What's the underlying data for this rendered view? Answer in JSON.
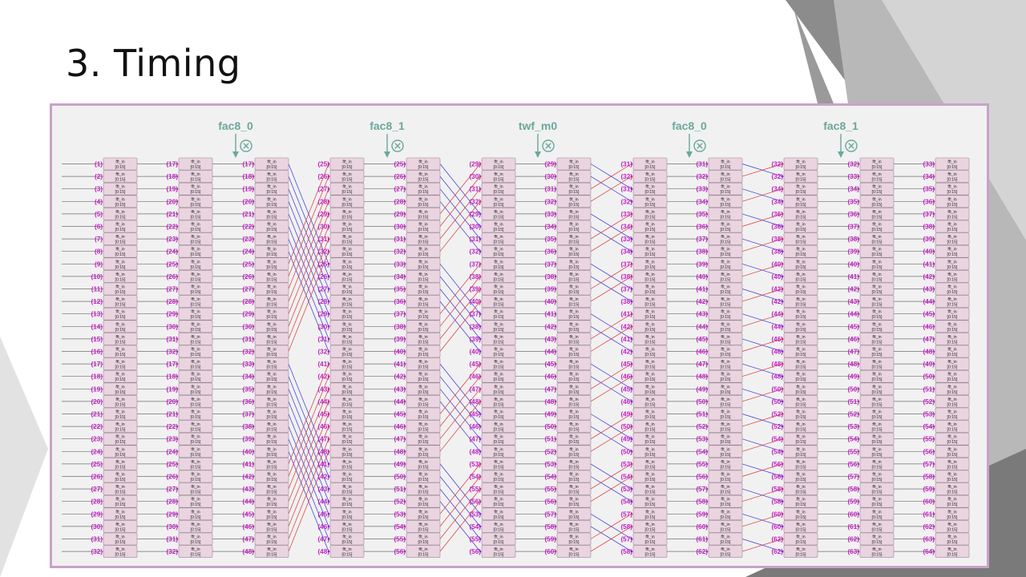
{
  "slide": {
    "title": "3. Timing"
  },
  "colors": {
    "accent": "#6aa89a",
    "label": "#c020c0",
    "box_fill": "#ead4e0",
    "box_stroke": "#9a8a98",
    "wire": "#707070",
    "cross_blue": "#3333dd",
    "cross_red": "#dd3333",
    "frame": "#c8a2c8"
  },
  "diagram": {
    "box_name": "fft_in",
    "box_range": "[0:15]",
    "multiplier_icon": "circled-times-icon",
    "operators": [
      "fac8_0",
      "fac8_1",
      "twf_m0",
      "fac8_0",
      "fac8_1"
    ],
    "columns": [
      {
        "labels": [
          "(1)",
          "(2)",
          "(3)",
          "(4)",
          "(5)",
          "(6)",
          "(7)",
          "(8)",
          "(9)",
          "(10)",
          "(11)",
          "(12)",
          "(13)",
          "(14)",
          "(15)",
          "(16)",
          "(17)",
          "(18)",
          "(19)",
          "(20)",
          "(21)",
          "(22)",
          "(23)",
          "(24)",
          "(25)",
          "(26)",
          "(27)",
          "(28)",
          "(29)",
          "(30)",
          "(31)",
          "(32)"
        ]
      },
      {
        "labels": [
          "(17)",
          "(18)",
          "(19)",
          "(20)",
          "(21)",
          "(22)",
          "(23)",
          "(24)",
          "(25)",
          "(26)",
          "(27)",
          "(28)",
          "(29)",
          "(30)",
          "(31)",
          "(32)",
          "(17)",
          "(18)",
          "(19)",
          "(20)",
          "(21)",
          "(22)",
          "(23)",
          "(24)",
          "(25)",
          "(26)",
          "(27)",
          "(28)",
          "(29)",
          "(30)",
          "(31)",
          "(32)"
        ]
      },
      {
        "labels": [
          "(17)",
          "(18)",
          "(19)",
          "(20)",
          "(21)",
          "(22)",
          "(23)",
          "(24)",
          "(25)",
          "(26)",
          "(27)",
          "(28)",
          "(29)",
          "(30)",
          "(31)",
          "(32)",
          "(33)",
          "(34)",
          "(35)",
          "(36)",
          "(37)",
          "(38)",
          "(39)",
          "(40)",
          "(41)",
          "(42)",
          "(43)",
          "(44)",
          "(45)",
          "(46)",
          "(47)",
          "(48)"
        ]
      },
      {
        "labels": [
          "(25)",
          "(26)",
          "(27)",
          "(28)",
          "(29)",
          "(30)",
          "(31)",
          "(32)",
          "(25)",
          "(26)",
          "(27)",
          "(28)",
          "(29)",
          "(30)",
          "(31)",
          "(32)",
          "(41)",
          "(42)",
          "(43)",
          "(44)",
          "(45)",
          "(46)",
          "(47)",
          "(48)",
          "(41)",
          "(42)",
          "(43)",
          "(44)",
          "(45)",
          "(46)",
          "(47)",
          "(48)"
        ]
      },
      {
        "labels": [
          "(25)",
          "(26)",
          "(27)",
          "(28)",
          "(29)",
          "(30)",
          "(31)",
          "(32)",
          "(33)",
          "(34)",
          "(35)",
          "(36)",
          "(37)",
          "(38)",
          "(39)",
          "(40)",
          "(41)",
          "(42)",
          "(43)",
          "(44)",
          "(45)",
          "(46)",
          "(47)",
          "(48)",
          "(49)",
          "(50)",
          "(51)",
          "(52)",
          "(53)",
          "(54)",
          "(55)",
          "(56)"
        ]
      },
      {
        "labels": [
          "(29)",
          "(30)",
          "(31)",
          "(32)",
          "(29)",
          "(30)",
          "(31)",
          "(32)",
          "(37)",
          "(38)",
          "(39)",
          "(40)",
          "(37)",
          "(38)",
          "(39)",
          "(40)",
          "(45)",
          "(46)",
          "(47)",
          "(48)",
          "(45)",
          "(46)",
          "(47)",
          "(48)",
          "(53)",
          "(54)",
          "(55)",
          "(56)",
          "(53)",
          "(54)",
          "(55)",
          "(56)"
        ]
      },
      {
        "labels": [
          "(29)",
          "(30)",
          "(31)",
          "(32)",
          "(33)",
          "(34)",
          "(35)",
          "(36)",
          "(37)",
          "(38)",
          "(39)",
          "(40)",
          "(41)",
          "(42)",
          "(43)",
          "(44)",
          "(45)",
          "(46)",
          "(47)",
          "(48)",
          "(49)",
          "(50)",
          "(51)",
          "(52)",
          "(53)",
          "(54)",
          "(55)",
          "(56)",
          "(57)",
          "(58)",
          "(59)",
          "(60)"
        ]
      },
      {
        "labels": [
          "(31)",
          "(32)",
          "(31)",
          "(32)",
          "(33)",
          "(34)",
          "(33)",
          "(34)",
          "(37)",
          "(38)",
          "(37)",
          "(38)",
          "(41)",
          "(42)",
          "(41)",
          "(42)",
          "(45)",
          "(46)",
          "(45)",
          "(46)",
          "(49)",
          "(50)",
          "(49)",
          "(50)",
          "(53)",
          "(54)",
          "(53)",
          "(54)",
          "(57)",
          "(58)",
          "(57)",
          "(58)"
        ]
      },
      {
        "labels": [
          "(31)",
          "(32)",
          "(33)",
          "(34)",
          "(35)",
          "(36)",
          "(37)",
          "(38)",
          "(39)",
          "(40)",
          "(41)",
          "(42)",
          "(43)",
          "(44)",
          "(45)",
          "(46)",
          "(47)",
          "(48)",
          "(49)",
          "(50)",
          "(51)",
          "(52)",
          "(53)",
          "(54)",
          "(55)",
          "(56)",
          "(57)",
          "(58)",
          "(59)",
          "(60)",
          "(61)",
          "(62)"
        ]
      },
      {
        "labels": [
          "(32)",
          "(32)",
          "(34)",
          "(34)",
          "(36)",
          "(36)",
          "(38)",
          "(38)",
          "(40)",
          "(40)",
          "(42)",
          "(42)",
          "(44)",
          "(44)",
          "(46)",
          "(46)",
          "(48)",
          "(48)",
          "(50)",
          "(50)",
          "(52)",
          "(52)",
          "(54)",
          "(54)",
          "(56)",
          "(56)",
          "(58)",
          "(58)",
          "(60)",
          "(60)",
          "(62)",
          "(62)"
        ]
      },
      {
        "labels": [
          "(32)",
          "(33)",
          "(34)",
          "(35)",
          "(36)",
          "(37)",
          "(38)",
          "(39)",
          "(40)",
          "(41)",
          "(42)",
          "(43)",
          "(44)",
          "(45)",
          "(46)",
          "(47)",
          "(48)",
          "(49)",
          "(50)",
          "(51)",
          "(52)",
          "(53)",
          "(54)",
          "(55)",
          "(56)",
          "(57)",
          "(58)",
          "(59)",
          "(60)",
          "(61)",
          "(62)",
          "(63)"
        ]
      },
      {
        "labels": [
          "(33)",
          "(34)",
          "(35)",
          "(36)",
          "(37)",
          "(38)",
          "(39)",
          "(40)",
          "(41)",
          "(42)",
          "(43)",
          "(44)",
          "(45)",
          "(46)",
          "(47)",
          "(48)",
          "(49)",
          "(50)",
          "(51)",
          "(52)",
          "(53)",
          "(54)",
          "(55)",
          "(56)",
          "(57)",
          "(58)",
          "(59)",
          "(60)",
          "(61)",
          "(62)",
          "(63)",
          "(64)"
        ]
      }
    ]
  }
}
